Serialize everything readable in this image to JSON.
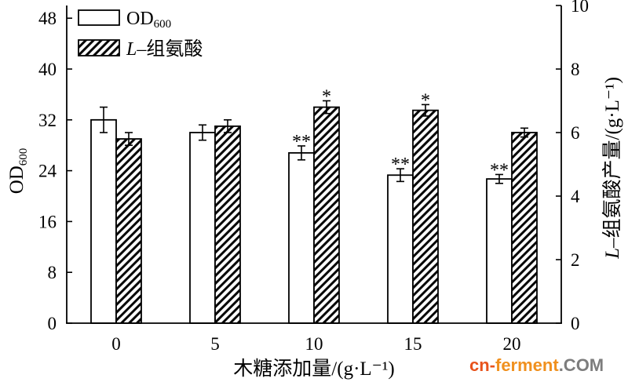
{
  "chart_data": {
    "type": "bar",
    "categories": [
      "0",
      "5",
      "10",
      "15",
      "20"
    ],
    "xlabel": "木糖添加量/(g·L⁻¹)",
    "ylabel": {
      "text": "OD",
      "subscript": "600"
    },
    "y2label": {
      "italic": "L",
      "text": "–组氨酸产量/(g·L⁻¹)"
    },
    "ylim": [
      0,
      50
    ],
    "yticks": [
      0,
      8,
      16,
      24,
      32,
      40,
      48
    ],
    "y2lim": [
      0,
      10
    ],
    "y2ticks": [
      0,
      2,
      4,
      6,
      8,
      10
    ],
    "grid": false,
    "legend_position": "top-left",
    "series": [
      {
        "name": {
          "text": "OD",
          "subscript": "600"
        },
        "axis": "left",
        "values": [
          32.0,
          30.0,
          26.8,
          23.3,
          22.7
        ],
        "errors": [
          2.0,
          1.2,
          1.1,
          1.0,
          0.7
        ],
        "significance": [
          "",
          "",
          "**",
          "**",
          "**"
        ]
      },
      {
        "name": {
          "italic": "L",
          "text": "–组氨酸"
        },
        "axis": "right",
        "values": [
          5.8,
          6.2,
          6.8,
          6.7,
          6.0
        ],
        "errors": [
          0.2,
          0.2,
          0.2,
          0.18,
          0.14
        ],
        "significance": [
          "",
          "",
          "*",
          "*",
          ""
        ]
      }
    ]
  },
  "colors": {
    "ink": "#000000",
    "od600_bar_fill": "#ffffff"
  },
  "watermark": {
    "parts": [
      {
        "text": "cn-",
        "color": "#e8531c"
      },
      {
        "text": "ferment",
        "color": "#f0901e"
      },
      {
        "text": ".COM",
        "color": "#7d7d7d"
      }
    ]
  }
}
